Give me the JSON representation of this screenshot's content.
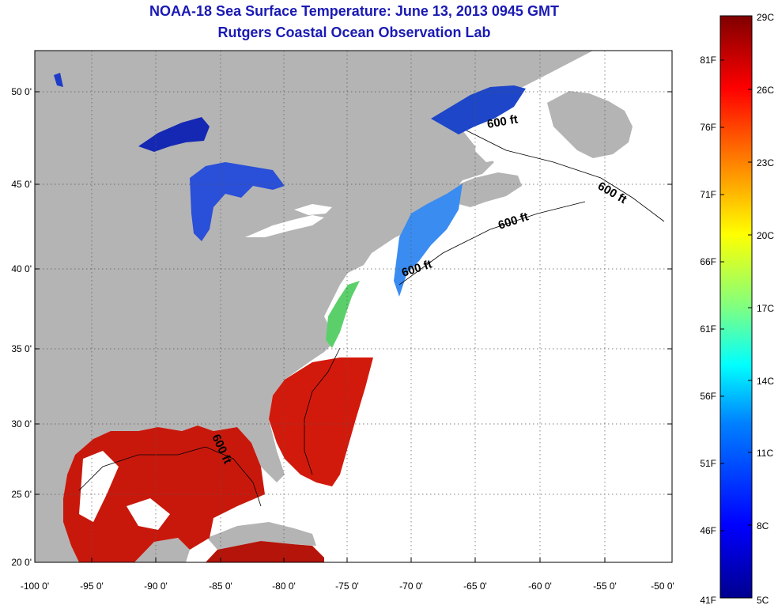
{
  "title": "NOAA-18 Sea Surface Temperature:  June 13, 2013 0945 GMT",
  "subtitle": "Rutgers Coastal Ocean Observation Lab",
  "lat_ticks": [
    "50 0'",
    "45 0'",
    "40 0'",
    "35 0'",
    "30 0'",
    "25 0'",
    "20 0'"
  ],
  "lon_ticks": [
    "-100 0'",
    "-95 0'",
    "-90 0'",
    "-85 0'",
    "-80 0'",
    "-75 0'",
    "-70 0'",
    "-65 0'",
    "-60 0'",
    "-55 0'",
    "-50 0'"
  ],
  "contour_labels": [
    "600 ft",
    "600 ft",
    "600 ft",
    "600 ft",
    "600 ft"
  ],
  "colorbar": {
    "celsius": [
      "29C",
      "26C",
      "23C",
      "20C",
      "17C",
      "14C",
      "11C",
      "8C",
      "5C"
    ],
    "fahrenheit": [
      "81F",
      "76F",
      "71F",
      "66F",
      "61F",
      "56F",
      "51F",
      "46F",
      "41F"
    ],
    "stops": [
      "#00008f",
      "#0000ff",
      "#0080ff",
      "#00ffff",
      "#80ff80",
      "#ffff00",
      "#ff8000",
      "#ff0000",
      "#800000"
    ]
  },
  "colors": {
    "land": "#b4b4b4",
    "ocean_no_data": "#ffffff",
    "warm_water": "#d21a0c",
    "cold_water": "#1432c8",
    "title": "#1a1ab4"
  }
}
